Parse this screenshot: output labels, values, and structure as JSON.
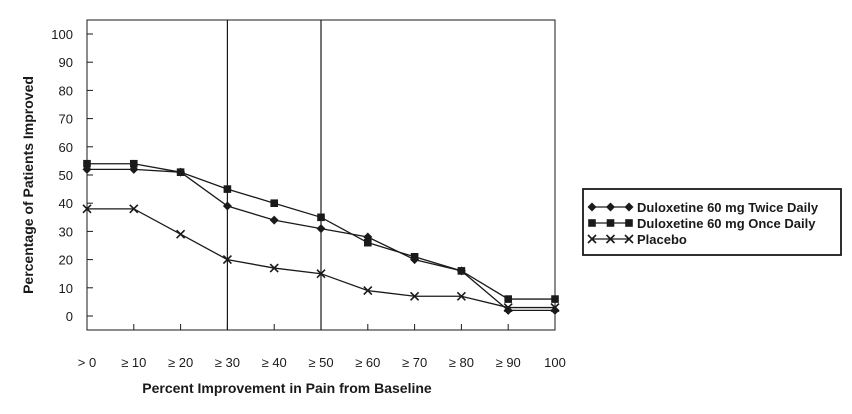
{
  "chart_data": {
    "type": "line",
    "title": "",
    "xlabel": "Percent Improvement in Pain from Baseline",
    "ylabel": "Percentage of Patients Improved",
    "categories": [
      "> 0",
      "≥ 10",
      "≥ 20",
      "≥ 30",
      "≥ 40",
      "≥ 50",
      "≥ 60",
      "≥ 70",
      "≥ 80",
      "≥ 90",
      "100"
    ],
    "ylim": [
      0,
      100
    ],
    "yticks": [
      0,
      10,
      20,
      30,
      40,
      50,
      60,
      70,
      80,
      90,
      100
    ],
    "reference_lines_at": [
      "≥ 30",
      "≥ 50"
    ],
    "grid": false,
    "legend_position": "right",
    "series": [
      {
        "name": "Duloxetine 60 mg Twice Daily",
        "marker": "diamond",
        "values": [
          52,
          52,
          51,
          39,
          34,
          31,
          28,
          20,
          16,
          2,
          2
        ]
      },
      {
        "name": "Duloxetine 60 mg Once Daily",
        "marker": "square",
        "values": [
          54,
          54,
          51,
          45,
          40,
          35,
          26,
          21,
          16,
          6,
          6
        ]
      },
      {
        "name": "Placebo",
        "marker": "x",
        "values": [
          38,
          38,
          29,
          20,
          17,
          15,
          9,
          7,
          7,
          3,
          3
        ]
      }
    ]
  }
}
